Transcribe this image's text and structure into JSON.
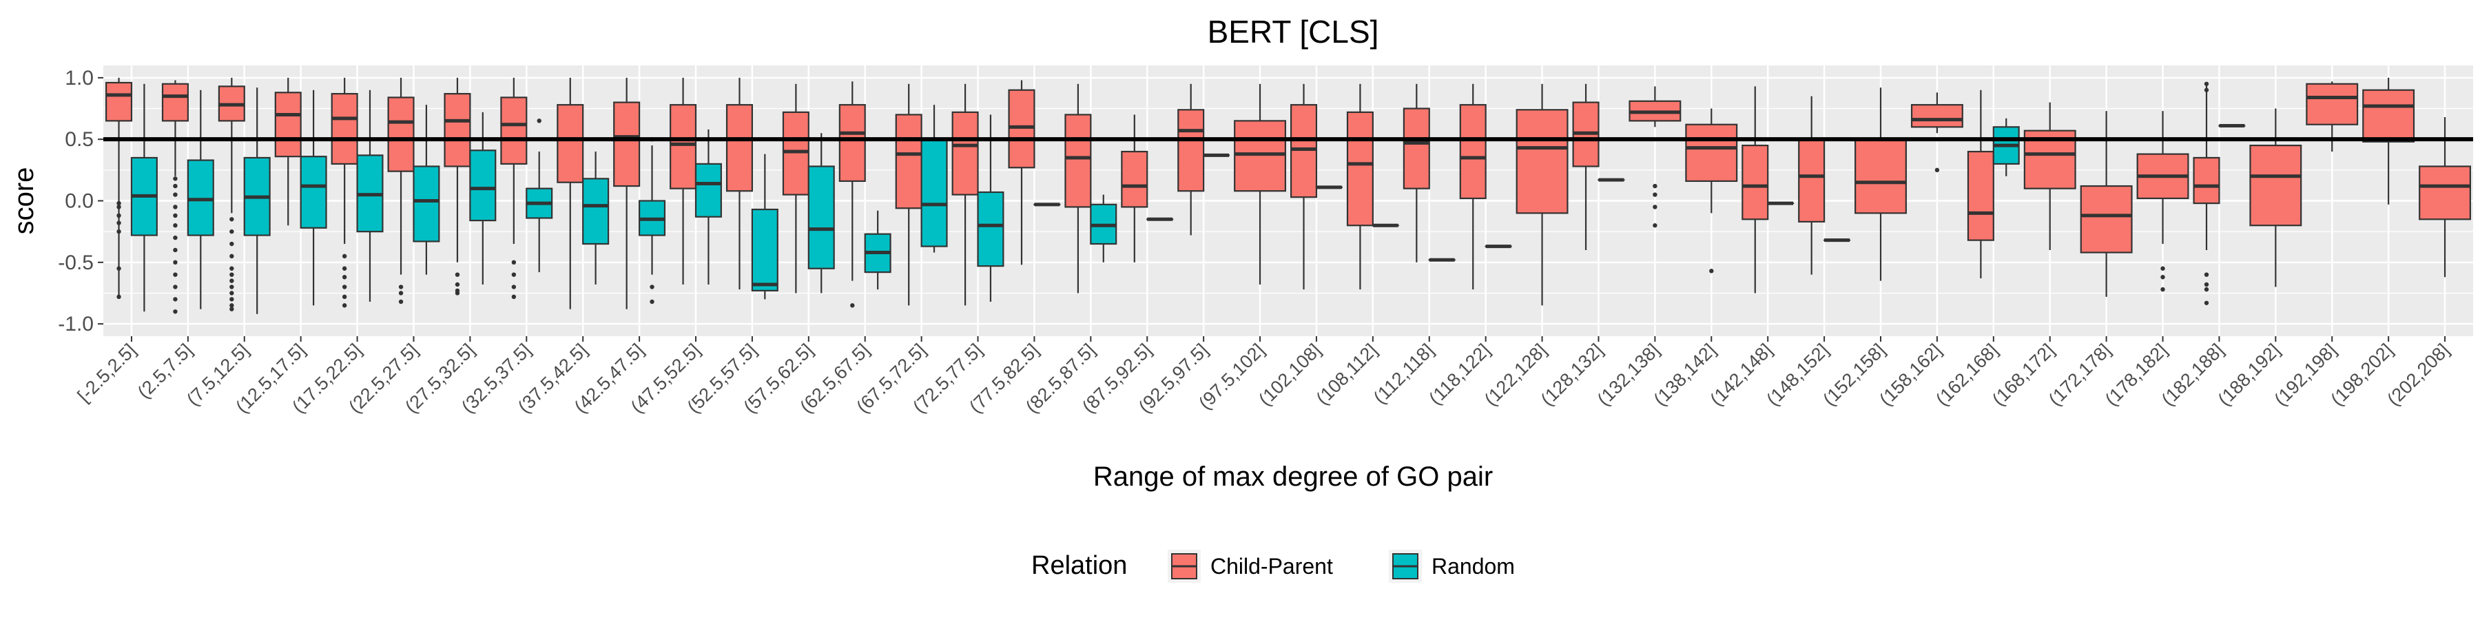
{
  "chart_data": {
    "type": "box",
    "title": "BERT [CLS]",
    "xlabel": "Range of max degree of GO pair",
    "ylabel": "score",
    "ylim": [
      -1.0,
      1.0
    ],
    "yticks": [
      "-1.0",
      "-0.5",
      "0.0",
      "0.5",
      "1.0"
    ],
    "yticks_values": [
      -1.0,
      -0.5,
      0.0,
      0.5,
      1.0
    ],
    "reference_line": 0.5,
    "legend": {
      "title": "Relation",
      "position": "bottom",
      "items": [
        {
          "label": "Child-Parent",
          "color": "#F8766D"
        },
        {
          "label": "Random",
          "color": "#00BFC4"
        }
      ]
    },
    "categories": [
      "[-2.5,2.5]",
      "(2.5,7.5]",
      "(7.5,12.5]",
      "(12.5,17.5]",
      "(17.5,22.5]",
      "(22.5,27.5]",
      "(27.5,32.5]",
      "(32.5,37.5]",
      "(37.5,42.5]",
      "(42.5,47.5]",
      "(47.5,52.5]",
      "(52.5,57.5]",
      "(57.5,62.5]",
      "(62.5,67.5]",
      "(67.5,72.5]",
      "(72.5,77.5]",
      "(77.5,82.5]",
      "(82.5,87.5]",
      "(87.5,92.5]",
      "(92.5,97.5]",
      "(97.5,102]",
      "(102,108]",
      "(108,112]",
      "(112,118]",
      "(118,122]",
      "(122,128]",
      "(128,132]",
      "(132,138]",
      "(138,142]",
      "(142,148]",
      "(148,152]",
      "(152,158]",
      "(158,162]",
      "(162,168]",
      "(168,172]",
      "(172,178]",
      "(178,182]",
      "(182,188]",
      "(188,192]",
      "(192,198]",
      "(198,202]",
      "(202,208]"
    ],
    "series": [
      {
        "name": "Child-Parent",
        "color": "#F8766D",
        "boxes": [
          {
            "lo": -0.78,
            "q1": 0.65,
            "med": 0.86,
            "q3": 0.96,
            "hi": 1.0,
            "outliers": [
              -0.02,
              -0.05,
              -0.12,
              -0.18,
              -0.25,
              -0.55,
              -0.78
            ]
          },
          {
            "lo": 0.2,
            "q1": 0.65,
            "med": 0.85,
            "q3": 0.95,
            "hi": 0.98,
            "outliers": [
              0.18,
              0.12,
              0.05,
              -0.05,
              -0.12,
              -0.2,
              -0.3,
              -0.4,
              -0.5,
              -0.6,
              -0.7,
              -0.8,
              -0.9
            ]
          },
          {
            "lo": -0.1,
            "q1": 0.65,
            "med": 0.78,
            "q3": 0.93,
            "hi": 1.0,
            "outliers": [
              -0.15,
              -0.25,
              -0.35,
              -0.45,
              -0.55,
              -0.6,
              -0.65,
              -0.7,
              -0.75,
              -0.8,
              -0.85,
              -0.88
            ]
          },
          {
            "lo": -0.2,
            "q1": 0.36,
            "med": 0.7,
            "q3": 0.88,
            "hi": 1.0,
            "outliers": []
          },
          {
            "lo": -0.35,
            "q1": 0.3,
            "med": 0.67,
            "q3": 0.87,
            "hi": 1.0,
            "outliers": [
              -0.45,
              -0.55,
              -0.62,
              -0.7,
              -0.78,
              -0.85
            ]
          },
          {
            "lo": -0.6,
            "q1": 0.24,
            "med": 0.64,
            "q3": 0.84,
            "hi": 1.0,
            "outliers": [
              -0.7,
              -0.75,
              -0.82
            ]
          },
          {
            "lo": -0.5,
            "q1": 0.28,
            "med": 0.65,
            "q3": 0.87,
            "hi": 1.0,
            "outliers": [
              -0.6,
              -0.68,
              -0.73,
              -0.75
            ]
          },
          {
            "lo": -0.35,
            "q1": 0.3,
            "med": 0.62,
            "q3": 0.84,
            "hi": 1.0,
            "outliers": [
              -0.5,
              -0.6,
              -0.7,
              -0.78
            ]
          },
          {
            "lo": -0.88,
            "q1": 0.15,
            "med": 0.5,
            "q3": 0.78,
            "hi": 1.0,
            "outliers": []
          },
          {
            "lo": -0.88,
            "q1": 0.12,
            "med": 0.52,
            "q3": 0.8,
            "hi": 1.0,
            "outliers": []
          },
          {
            "lo": -0.68,
            "q1": 0.1,
            "med": 0.46,
            "q3": 0.78,
            "hi": 1.0,
            "outliers": []
          },
          {
            "lo": -0.72,
            "q1": 0.08,
            "med": 0.5,
            "q3": 0.78,
            "hi": 1.0,
            "outliers": []
          },
          {
            "lo": -0.75,
            "q1": 0.05,
            "med": 0.4,
            "q3": 0.72,
            "hi": 0.95,
            "outliers": []
          },
          {
            "lo": -0.65,
            "q1": 0.16,
            "med": 0.55,
            "q3": 0.78,
            "hi": 0.97,
            "outliers": [
              -0.85
            ]
          },
          {
            "lo": -0.85,
            "q1": -0.06,
            "med": 0.38,
            "q3": 0.7,
            "hi": 0.95,
            "outliers": []
          },
          {
            "lo": -0.85,
            "q1": 0.05,
            "med": 0.45,
            "q3": 0.72,
            "hi": 0.95,
            "outliers": []
          },
          {
            "lo": -0.52,
            "q1": 0.27,
            "med": 0.6,
            "q3": 0.9,
            "hi": 0.98,
            "outliers": []
          },
          {
            "lo": -0.75,
            "q1": -0.05,
            "med": 0.35,
            "q3": 0.7,
            "hi": 0.95,
            "outliers": []
          },
          {
            "lo": -0.5,
            "q1": -0.05,
            "med": 0.12,
            "q3": 0.4,
            "hi": 0.7,
            "outliers": []
          },
          {
            "lo": -0.28,
            "q1": 0.08,
            "med": 0.57,
            "q3": 0.74,
            "hi": 0.95,
            "outliers": []
          },
          {
            "lo": -0.68,
            "q1": 0.08,
            "med": 0.38,
            "q3": 0.65,
            "hi": 0.95,
            "outliers": []
          },
          {
            "lo": -0.72,
            "q1": 0.03,
            "med": 0.42,
            "q3": 0.78,
            "hi": 0.95,
            "outliers": []
          },
          {
            "lo": -0.72,
            "q1": -0.2,
            "med": 0.3,
            "q3": 0.72,
            "hi": 0.95,
            "outliers": []
          },
          {
            "lo": -0.5,
            "q1": 0.1,
            "med": 0.47,
            "q3": 0.75,
            "hi": 0.95,
            "outliers": []
          },
          {
            "lo": -0.72,
            "q1": 0.02,
            "med": 0.35,
            "q3": 0.78,
            "hi": 0.95,
            "outliers": []
          },
          {
            "lo": -0.85,
            "q1": -0.1,
            "med": 0.43,
            "q3": 0.74,
            "hi": 0.95,
            "outliers": []
          },
          {
            "lo": -0.4,
            "q1": 0.28,
            "med": 0.55,
            "q3": 0.8,
            "hi": 0.95,
            "outliers": []
          },
          {
            "lo": 0.6,
            "q1": 0.65,
            "med": 0.72,
            "q3": 0.81,
            "hi": 0.93,
            "outliers": [
              0.12,
              0.05,
              -0.05,
              -0.2
            ]
          },
          {
            "lo": -0.1,
            "q1": 0.16,
            "med": 0.43,
            "q3": 0.62,
            "hi": 0.75,
            "outliers": [
              -0.57
            ]
          },
          {
            "lo": -0.75,
            "q1": -0.15,
            "med": 0.12,
            "q3": 0.45,
            "hi": 0.93,
            "outliers": []
          },
          {
            "lo": -0.6,
            "q1": -0.17,
            "med": 0.2,
            "q3": 0.5,
            "hi": 0.85,
            "outliers": []
          },
          {
            "lo": -0.65,
            "q1": -0.1,
            "med": 0.15,
            "q3": 0.5,
            "hi": 0.92,
            "outliers": []
          },
          {
            "lo": 0.55,
            "q1": 0.6,
            "med": 0.66,
            "q3": 0.78,
            "hi": 0.88,
            "outliers": [
              0.25
            ]
          },
          {
            "lo": -0.63,
            "q1": -0.32,
            "med": -0.1,
            "q3": 0.4,
            "hi": 0.9,
            "outliers": []
          },
          {
            "lo": -0.4,
            "q1": 0.1,
            "med": 0.38,
            "q3": 0.57,
            "hi": 0.8,
            "outliers": []
          },
          {
            "lo": -0.78,
            "q1": -0.42,
            "med": -0.12,
            "q3": 0.12,
            "hi": 0.73,
            "outliers": []
          },
          {
            "lo": -0.35,
            "q1": 0.02,
            "med": 0.2,
            "q3": 0.38,
            "hi": 0.73,
            "outliers": [
              -0.55,
              -0.62,
              -0.72
            ]
          },
          {
            "lo": -0.4,
            "q1": -0.02,
            "med": 0.12,
            "q3": 0.35,
            "hi": 0.95,
            "outliers": [
              -0.6,
              -0.68,
              -0.72,
              -0.83,
              0.95,
              0.9
            ]
          },
          {
            "lo": -0.7,
            "q1": -0.2,
            "med": 0.2,
            "q3": 0.45,
            "hi": 0.75,
            "outliers": []
          },
          {
            "lo": 0.4,
            "q1": 0.62,
            "med": 0.84,
            "q3": 0.95,
            "hi": 0.97,
            "outliers": []
          },
          {
            "lo": -0.03,
            "q1": 0.48,
            "med": 0.77,
            "q3": 0.9,
            "hi": 1.0,
            "outliers": []
          },
          {
            "lo": -0.62,
            "q1": -0.15,
            "med": 0.12,
            "q3": 0.28,
            "hi": 0.68,
            "outliers": []
          }
        ]
      },
      {
        "name": "Random",
        "color": "#00BFC4",
        "boxes": [
          {
            "lo": -0.9,
            "q1": -0.28,
            "med": 0.04,
            "q3": 0.35,
            "hi": 0.95,
            "outliers": []
          },
          {
            "lo": -0.88,
            "q1": -0.28,
            "med": 0.01,
            "q3": 0.33,
            "hi": 0.9,
            "outliers": []
          },
          {
            "lo": -0.92,
            "q1": -0.28,
            "med": 0.03,
            "q3": 0.35,
            "hi": 0.92,
            "outliers": []
          },
          {
            "lo": -0.85,
            "q1": -0.22,
            "med": 0.12,
            "q3": 0.36,
            "hi": 0.9,
            "outliers": []
          },
          {
            "lo": -0.82,
            "q1": -0.25,
            "med": 0.05,
            "q3": 0.37,
            "hi": 0.9,
            "outliers": []
          },
          {
            "lo": -0.6,
            "q1": -0.33,
            "med": 0.0,
            "q3": 0.28,
            "hi": 0.78,
            "outliers": []
          },
          {
            "lo": -0.68,
            "q1": -0.16,
            "med": 0.1,
            "q3": 0.41,
            "hi": 0.72,
            "outliers": []
          },
          {
            "lo": -0.58,
            "q1": -0.14,
            "med": -0.02,
            "q3": 0.1,
            "hi": 0.4,
            "outliers": [
              0.65
            ]
          },
          {
            "lo": -0.68,
            "q1": -0.35,
            "med": -0.04,
            "q3": 0.18,
            "hi": 0.4,
            "outliers": []
          },
          {
            "lo": -0.6,
            "q1": -0.28,
            "med": -0.15,
            "q3": 0.0,
            "hi": 0.45,
            "outliers": [
              -0.7,
              -0.82,
              0.5
            ]
          },
          {
            "lo": -0.68,
            "q1": -0.13,
            "med": 0.14,
            "q3": 0.3,
            "hi": 0.58,
            "outliers": []
          },
          {
            "lo": -0.8,
            "q1": -0.73,
            "med": -0.68,
            "q3": -0.07,
            "hi": 0.38,
            "outliers": []
          },
          {
            "lo": -0.75,
            "q1": -0.55,
            "med": -0.23,
            "q3": 0.28,
            "hi": 0.55,
            "outliers": []
          },
          {
            "lo": -0.72,
            "q1": -0.58,
            "med": -0.42,
            "q3": -0.27,
            "hi": -0.08,
            "outliers": []
          },
          {
            "lo": -0.42,
            "q1": -0.37,
            "med": -0.03,
            "q3": 0.5,
            "hi": 0.78,
            "outliers": []
          },
          {
            "lo": -0.82,
            "q1": -0.53,
            "med": -0.2,
            "q3": 0.07,
            "hi": 0.7,
            "outliers": []
          },
          {
            "lo": -0.03,
            "q1": -0.03,
            "med": -0.03,
            "q3": -0.03,
            "hi": -0.03,
            "outliers": []
          },
          {
            "lo": -0.5,
            "q1": -0.35,
            "med": -0.2,
            "q3": -0.03,
            "hi": 0.05,
            "outliers": []
          },
          {
            "lo": -0.15,
            "q1": -0.15,
            "med": -0.15,
            "q3": -0.15,
            "hi": -0.15,
            "outliers": []
          },
          {
            "lo": 0.37,
            "q1": 0.37,
            "med": 0.37,
            "q3": 0.37,
            "hi": 0.37,
            "outliers": []
          },
          null,
          {
            "lo": 0.11,
            "q1": 0.11,
            "med": 0.11,
            "q3": 0.11,
            "hi": 0.11,
            "outliers": []
          },
          {
            "lo": -0.2,
            "q1": -0.2,
            "med": -0.2,
            "q3": -0.2,
            "hi": -0.2,
            "outliers": []
          },
          {
            "lo": -0.48,
            "q1": -0.48,
            "med": -0.48,
            "q3": -0.48,
            "hi": -0.48,
            "outliers": []
          },
          {
            "lo": -0.37,
            "q1": -0.37,
            "med": -0.37,
            "q3": -0.37,
            "hi": -0.37,
            "outliers": []
          },
          null,
          {
            "lo": 0.17,
            "q1": 0.17,
            "med": 0.17,
            "q3": 0.17,
            "hi": 0.17,
            "outliers": []
          },
          null,
          null,
          {
            "lo": -0.02,
            "q1": -0.02,
            "med": -0.02,
            "q3": -0.02,
            "hi": -0.02,
            "outliers": []
          },
          {
            "lo": -0.32,
            "q1": -0.32,
            "med": -0.32,
            "q3": -0.32,
            "hi": -0.32,
            "outliers": []
          },
          null,
          null,
          {
            "lo": 0.2,
            "q1": 0.3,
            "med": 0.45,
            "q3": 0.6,
            "hi": 0.67,
            "outliers": []
          },
          null,
          null,
          null,
          {
            "lo": 0.61,
            "q1": 0.61,
            "med": 0.61,
            "q3": 0.61,
            "hi": 0.61,
            "outliers": []
          },
          null,
          null,
          null,
          null
        ]
      }
    ]
  }
}
